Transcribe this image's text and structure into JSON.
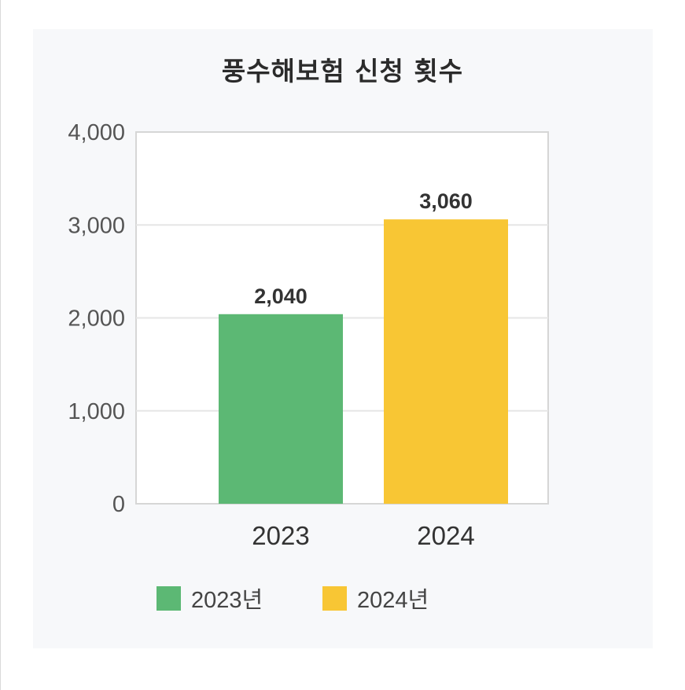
{
  "chart_data": {
    "type": "bar",
    "title": "풍수해보험 신청 횟수",
    "categories": [
      "2023",
      "2024"
    ],
    "values": [
      2040,
      3060
    ],
    "value_labels": [
      "2,040",
      "3,060"
    ],
    "bar_colors": [
      "#5cb874",
      "#f8c634"
    ],
    "legend": [
      "2023년",
      "2024년"
    ],
    "legend_placement": "bottom",
    "ylim": [
      0,
      4000
    ],
    "yticks": [
      0,
      1000,
      2000,
      3000,
      4000
    ],
    "ytick_labels": [
      "0",
      "1,000",
      "2,000",
      "3,000",
      "4,000"
    ],
    "grid": true,
    "xlabel": "",
    "ylabel": ""
  }
}
